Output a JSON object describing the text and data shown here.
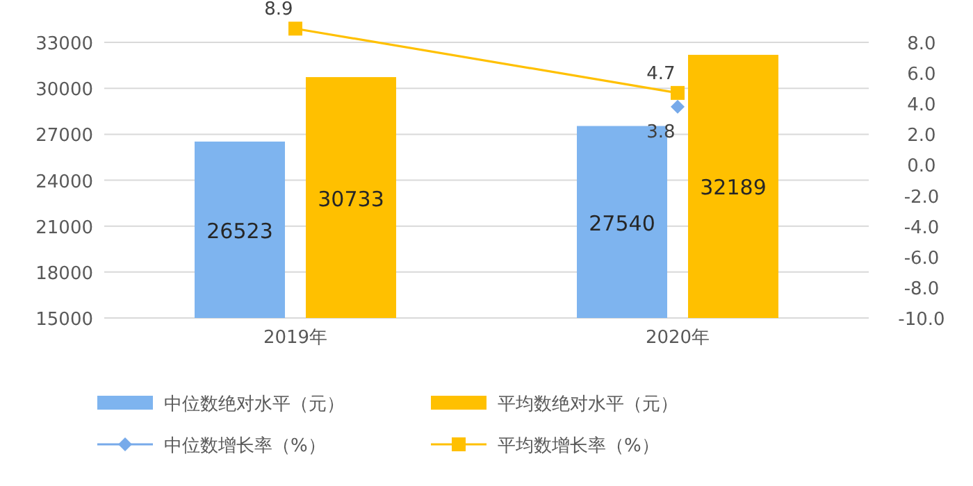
{
  "chart_data": {
    "type": "bar",
    "categories": [
      "2019年",
      "2020年"
    ],
    "series": [
      {
        "name": "中位数绝对水平（元）",
        "color": "#7eb4ef",
        "values": [
          26523,
          27540
        ],
        "value_labels": [
          "26523",
          "27540"
        ]
      },
      {
        "name": "平均数绝对水平（元）",
        "color": "#ffc000",
        "values": [
          30733,
          32189
        ],
        "value_labels": [
          "30733",
          "32189"
        ]
      },
      {
        "name": "中位数增长率（%）",
        "type": "line",
        "axis": "y2",
        "color": "#77aaea",
        "marker": "diamond",
        "values": [
          null,
          3.8
        ],
        "value_labels": [
          null,
          "3.8"
        ]
      },
      {
        "name": "平均数增长率（%）",
        "type": "line",
        "axis": "y2",
        "color": "#ffc000",
        "marker": "square",
        "values": [
          8.9,
          4.7
        ],
        "value_labels": [
          "8.9",
          "4.7"
        ]
      }
    ],
    "ylim": [
      15000,
      34500
    ],
    "yticks": [
      15000,
      18000,
      21000,
      24000,
      27000,
      30000,
      33000
    ],
    "y2lim": [
      -10,
      9.5
    ],
    "y2ticks": [
      {
        "value": -10,
        "label": "-10.0"
      },
      {
        "value": -8,
        "label": "-8.0"
      },
      {
        "value": -6,
        "label": "-6.0"
      },
      {
        "value": -4,
        "label": "-4.0"
      },
      {
        "value": -2,
        "label": "-2.0"
      },
      {
        "value": 0,
        "label": "0.0"
      },
      {
        "value": 2,
        "label": "2.0"
      },
      {
        "value": 4,
        "label": "4.0"
      },
      {
        "value": 6,
        "label": "6.0"
      },
      {
        "value": 8,
        "label": "8.0"
      }
    ],
    "grid": "y",
    "legend": "bottom"
  }
}
